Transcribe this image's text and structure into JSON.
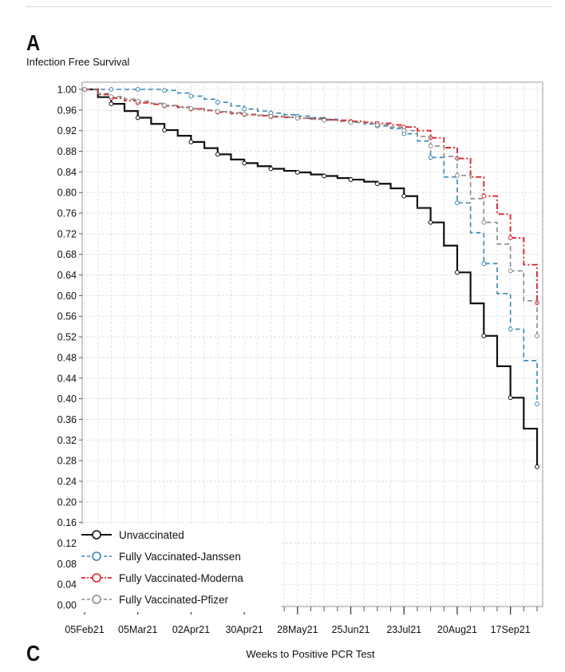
{
  "panel_labels": {
    "top": "A",
    "bottom": "C"
  },
  "chart_data": {
    "type": "line",
    "step": true,
    "ylabel": "Infection Free Survival",
    "xlabel": "Weeks to Positive PCR Test",
    "ylim": [
      0.0,
      1.0
    ],
    "yticks": [
      "0.00",
      "0.04",
      "0.08",
      "0.12",
      "0.16",
      "0.20",
      "0.24",
      "0.28",
      "0.32",
      "0.36",
      "0.40",
      "0.44",
      "0.48",
      "0.52",
      "0.56",
      "0.60",
      "0.64",
      "0.68",
      "0.72",
      "0.76",
      "0.80",
      "0.84",
      "0.88",
      "0.92",
      "0.96",
      "1.00"
    ],
    "xlim": [
      0,
      34
    ],
    "xticks": [
      {
        "week": 0,
        "label": "05Feb21"
      },
      {
        "week": 4,
        "label": "05Mar21"
      },
      {
        "week": 8,
        "label": "02Apr21"
      },
      {
        "week": 12,
        "label": "30Apr21"
      },
      {
        "week": 16,
        "label": "28May21"
      },
      {
        "week": 20,
        "label": "25Jun21"
      },
      {
        "week": 24,
        "label": "23Jul21"
      },
      {
        "week": 28,
        "label": "20Aug21"
      },
      {
        "week": 32,
        "label": "17Sep21"
      }
    ],
    "grid": true,
    "legend_position": "bottom-left",
    "series": [
      {
        "name": "Unvaccinated",
        "color": "#111111",
        "dash": "solid",
        "x": [
          0,
          1,
          2,
          3,
          4,
          5,
          6,
          7,
          8,
          9,
          10,
          11,
          12,
          13,
          14,
          15,
          16,
          17,
          18,
          19,
          20,
          21,
          22,
          23,
          24,
          25,
          26,
          27,
          28,
          29,
          30,
          31,
          32,
          33,
          34
        ],
        "y": [
          1.0,
          0.985,
          0.972,
          0.958,
          0.945,
          0.933,
          0.921,
          0.91,
          0.898,
          0.886,
          0.874,
          0.864,
          0.857,
          0.851,
          0.846,
          0.842,
          0.839,
          0.835,
          0.832,
          0.828,
          0.825,
          0.821,
          0.817,
          0.808,
          0.793,
          0.77,
          0.742,
          0.697,
          0.645,
          0.585,
          0.522,
          0.463,
          0.402,
          0.342,
          0.268
        ]
      },
      {
        "name": "Fully Vaccinated-Janssen",
        "color": "#3a86b2",
        "dash": "dashed",
        "x": [
          0,
          1,
          2,
          3,
          4,
          5,
          6,
          7,
          8,
          9,
          10,
          11,
          12,
          13,
          14,
          15,
          16,
          17,
          18,
          19,
          20,
          21,
          22,
          23,
          24,
          25,
          26,
          27,
          28,
          29,
          30,
          31,
          32,
          33,
          34
        ],
        "y": [
          1.0,
          1.0,
          1.0,
          1.0,
          1.0,
          1.0,
          0.998,
          0.993,
          0.987,
          0.981,
          0.975,
          0.968,
          0.962,
          0.958,
          0.954,
          0.951,
          0.948,
          0.945,
          0.942,
          0.939,
          0.936,
          0.933,
          0.929,
          0.924,
          0.914,
          0.9,
          0.868,
          0.83,
          0.78,
          0.722,
          0.662,
          0.604,
          0.535,
          0.474,
          0.39
        ]
      },
      {
        "name": "Fully Vaccinated-Moderna",
        "color": "#d8262a",
        "dash": "dashdot",
        "x": [
          0,
          1,
          2,
          3,
          4,
          5,
          6,
          7,
          8,
          9,
          10,
          11,
          12,
          13,
          14,
          15,
          16,
          17,
          18,
          19,
          20,
          21,
          22,
          23,
          24,
          25,
          26,
          27,
          28,
          29,
          30,
          31,
          32,
          33,
          34
        ],
        "y": [
          1.0,
          0.99,
          0.983,
          0.978,
          0.974,
          0.971,
          0.968,
          0.965,
          0.962,
          0.959,
          0.956,
          0.953,
          0.951,
          0.949,
          0.947,
          0.946,
          0.944,
          0.943,
          0.941,
          0.94,
          0.938,
          0.936,
          0.934,
          0.931,
          0.927,
          0.92,
          0.906,
          0.887,
          0.866,
          0.83,
          0.793,
          0.758,
          0.712,
          0.66,
          0.586
        ]
      },
      {
        "name": "Fully Vaccinated-Pfizer",
        "color": "#8a8a8a",
        "dash": "dashed",
        "x": [
          0,
          1,
          2,
          3,
          4,
          5,
          6,
          7,
          8,
          9,
          10,
          11,
          12,
          13,
          14,
          15,
          16,
          17,
          18,
          19,
          20,
          21,
          22,
          23,
          24,
          25,
          26,
          27,
          28,
          29,
          30,
          31,
          32,
          33,
          34
        ],
        "y": [
          1.0,
          0.992,
          0.986,
          0.981,
          0.977,
          0.973,
          0.969,
          0.966,
          0.963,
          0.96,
          0.957,
          0.955,
          0.952,
          0.95,
          0.948,
          0.946,
          0.944,
          0.942,
          0.94,
          0.938,
          0.936,
          0.934,
          0.931,
          0.927,
          0.92,
          0.909,
          0.89,
          0.87,
          0.833,
          0.788,
          0.742,
          0.7,
          0.648,
          0.59,
          0.522
        ]
      }
    ]
  }
}
